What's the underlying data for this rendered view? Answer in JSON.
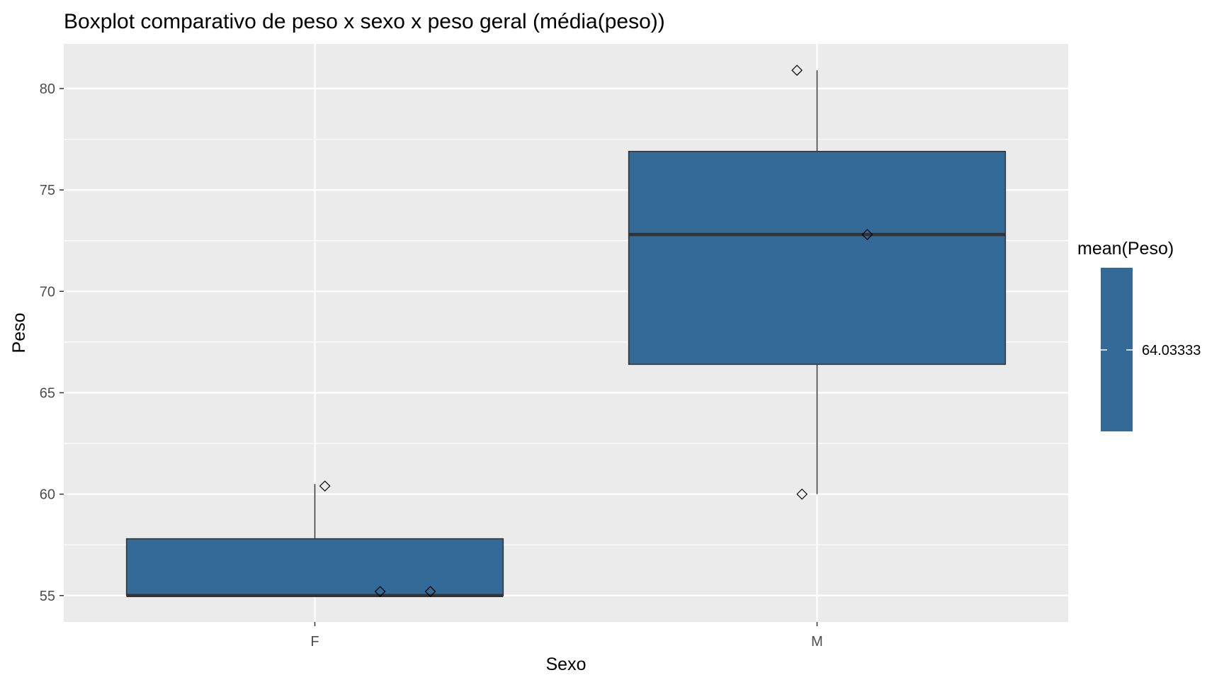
{
  "chart_data": {
    "type": "boxplot",
    "title": "Boxplot comparativo de peso x sexo x peso geral (média(peso))",
    "xlabel": "Sexo",
    "ylabel": "Peso",
    "categories": [
      "F",
      "M"
    ],
    "ylim": [
      53.7,
      82.2
    ],
    "yticks": [
      55,
      60,
      65,
      70,
      75,
      80
    ],
    "ytick_labels": [
      "55",
      "60",
      "65",
      "70",
      "75",
      "80"
    ],
    "grid": true,
    "fill_color": "#336a98",
    "boxes": [
      {
        "category": "F",
        "min": 55.0,
        "q1": 55.0,
        "median": 55.0,
        "q3": 57.8,
        "max": 60.5
      },
      {
        "category": "M",
        "min": 60.0,
        "q1": 66.4,
        "median": 72.8,
        "q3": 76.9,
        "max": 80.9
      }
    ],
    "points": [
      {
        "category": "F",
        "jitter": 0.02,
        "y": 60.4
      },
      {
        "category": "F",
        "jitter": 0.13,
        "y": 55.2
      },
      {
        "category": "F",
        "jitter": 0.23,
        "y": 55.2
      },
      {
        "category": "M",
        "jitter": -0.04,
        "y": 80.9
      },
      {
        "category": "M",
        "jitter": 0.1,
        "y": 72.8
      },
      {
        "category": "M",
        "jitter": -0.03,
        "y": 60.0
      }
    ],
    "legend": {
      "title": "mean(Peso)",
      "label": "64.03333",
      "placement": "right"
    }
  }
}
